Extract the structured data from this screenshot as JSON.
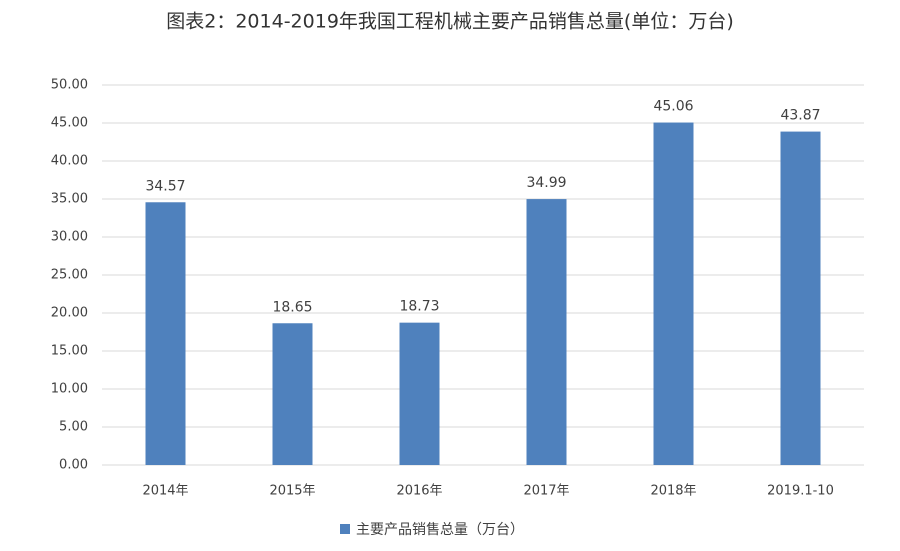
{
  "chart_data": {
    "type": "bar",
    "title": "图表2：2014-2019年我国工程机械主要产品销售总量(单位：万台)",
    "categories": [
      "2014年",
      "2015年",
      "2016年",
      "2017年",
      "2018年",
      "2019.1-10"
    ],
    "series": [
      {
        "name": "主要产品销售总量（万台）",
        "color": "#4f81bd",
        "values": [
          34.57,
          18.65,
          18.73,
          34.99,
          45.06,
          43.87
        ]
      }
    ],
    "ylim": [
      0,
      50
    ],
    "yticks": [
      {
        "value": 0,
        "label": "0.00"
      },
      {
        "value": 5,
        "label": "5.00"
      },
      {
        "value": 10,
        "label": "10.00"
      },
      {
        "value": 15,
        "label": "15.00"
      },
      {
        "value": 20,
        "label": "20.00"
      },
      {
        "value": 25,
        "label": "25.00"
      },
      {
        "value": 30,
        "label": "30.00"
      },
      {
        "value": 35,
        "label": "35.00"
      },
      {
        "value": 40,
        "label": "40.00"
      },
      {
        "value": 45,
        "label": "45.00"
      },
      {
        "value": 50,
        "label": "50.00"
      }
    ],
    "grid": true,
    "legend": "bottom"
  }
}
